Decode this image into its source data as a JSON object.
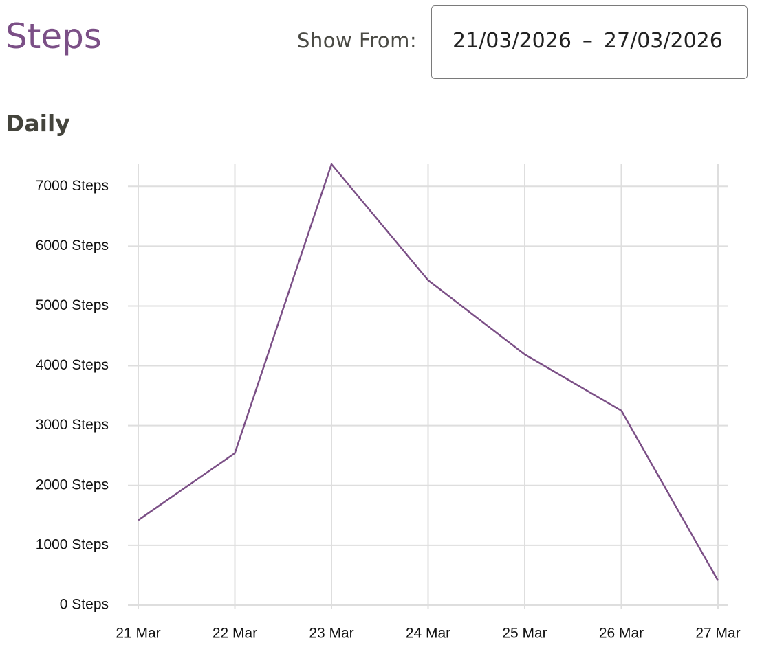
{
  "header": {
    "title": "Steps",
    "range_label": "Show From:",
    "range_start": "21/03/2026",
    "range_separator": "–",
    "range_end": "27/03/2026"
  },
  "section": {
    "title": "Daily"
  },
  "chart_data": {
    "type": "line",
    "categories": [
      "21 Mar",
      "22 Mar",
      "23 Mar",
      "24 Mar",
      "25 Mar",
      "26 Mar",
      "27 Mar"
    ],
    "series": [
      {
        "name": "Steps",
        "color": "#7b4f86",
        "values": [
          1420,
          2540,
          7370,
          5430,
          4190,
          3250,
          410
        ]
      }
    ],
    "ylim": [
      0,
      7370
    ],
    "yticks": [
      {
        "value": 0,
        "label": "0 Steps"
      },
      {
        "value": 1000,
        "label": "1000 Steps"
      },
      {
        "value": 2000,
        "label": "2000 Steps"
      },
      {
        "value": 3000,
        "label": "3000 Steps"
      },
      {
        "value": 4000,
        "label": "4000 Steps"
      },
      {
        "value": 5000,
        "label": "5000 Steps"
      },
      {
        "value": 6000,
        "label": "6000 Steps"
      },
      {
        "value": 7000,
        "label": "7000 Steps"
      }
    ],
    "grid": true
  }
}
